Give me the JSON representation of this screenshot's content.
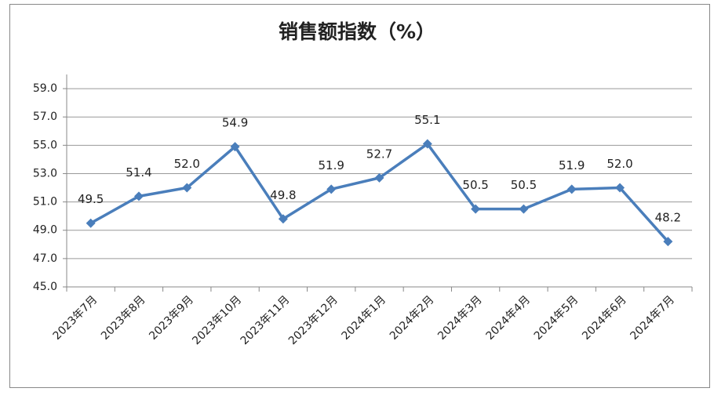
{
  "chart_data": {
    "type": "line",
    "title": "销售额指数（%）",
    "categories": [
      "2023年7月",
      "2023年8月",
      "2023年9月",
      "2023年10月",
      "2023年11月",
      "2023年12月",
      "2024年1月",
      "2024年2月",
      "2024年3月",
      "2024年4月",
      "2024年5月",
      "2024年6月",
      "2024年7月"
    ],
    "values": [
      49.5,
      51.4,
      52,
      54.9,
      49.8,
      51.9,
      52.7,
      55.1,
      50.5,
      50.5,
      51.9,
      52,
      48.2
    ],
    "value_labels": [
      "49.5",
      "51.4",
      "52.0",
      "54.9",
      "49.8",
      "51.9",
      "52.7",
      "55.1",
      "50.5",
      "50.5",
      "51.9",
      "52.0",
      "48.2"
    ],
    "color": "#4a7ebb",
    "ylim": [
      45,
      60
    ],
    "yticks": [
      {
        "value": 45,
        "label": "45.0"
      },
      {
        "value": 47,
        "label": "47.0"
      },
      {
        "value": 49,
        "label": "49.0"
      },
      {
        "value": 51,
        "label": "51.0"
      },
      {
        "value": 53,
        "label": "53.0"
      },
      {
        "value": 55,
        "label": "55.0"
      },
      {
        "value": 57,
        "label": "57.0"
      },
      {
        "value": 59,
        "label": "59.0"
      }
    ],
    "grid": true
  }
}
